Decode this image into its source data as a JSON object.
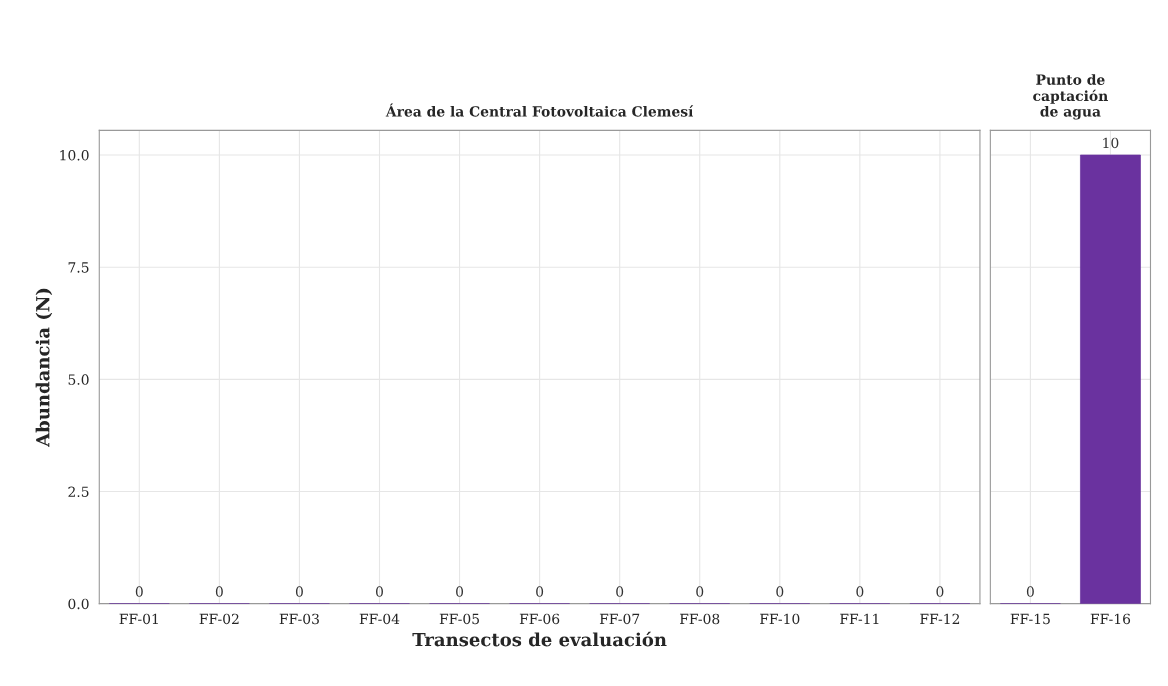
{
  "chart_data": [
    {
      "type": "bar",
      "title": "Área de la Central Fotovoltaica Clemesí",
      "xlabel": "Transectos de evaluación",
      "ylabel": "Abundancia (N)",
      "categories": [
        "FF-01",
        "FF-02",
        "FF-03",
        "FF-04",
        "FF-05",
        "FF-06",
        "FF-07",
        "FF-08",
        "FF-10",
        "FF-11",
        "FF-12"
      ],
      "values": [
        0,
        0,
        0,
        0,
        0,
        0,
        0,
        0,
        0,
        0,
        0
      ],
      "color": "#6a329f",
      "ylim": [
        0,
        10.55
      ],
      "yticks": [
        {
          "value": 0,
          "label": "0.0"
        },
        {
          "value": 2.5,
          "label": "2.5"
        },
        {
          "value": 5,
          "label": "5.0"
        },
        {
          "value": 7.5,
          "label": "7.5"
        },
        {
          "value": 10,
          "label": "10.0"
        }
      ],
      "grid": true,
      "data_labels": true
    },
    {
      "type": "bar",
      "title": "Punto de\ncaptación\nde agua",
      "categories": [
        "FF-15",
        "FF-16"
      ],
      "values": [
        0,
        10
      ],
      "color": "#6a329f",
      "ylim": [
        0,
        10.55
      ],
      "yticks": [
        0,
        2.5,
        5,
        7.5,
        10
      ],
      "grid": true,
      "data_labels": true,
      "tick_labels": "x"
    }
  ]
}
